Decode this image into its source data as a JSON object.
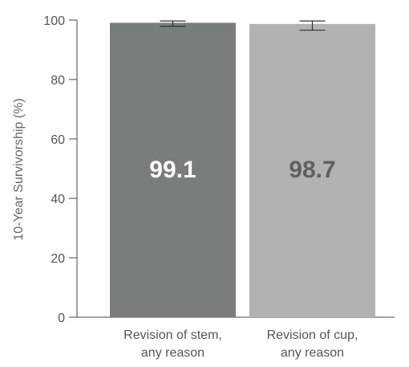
{
  "chart_data": {
    "type": "bar",
    "ylabel": "10-Year Survivorship (%)",
    "ylim": [
      0,
      100
    ],
    "yticks": [
      0,
      20,
      40,
      60,
      80,
      100
    ],
    "grid": false,
    "categories": [
      [
        "Revision of stem,",
        "any reason"
      ],
      [
        "Revision of cup,",
        "any reason"
      ]
    ],
    "values": [
      99.1,
      98.7
    ],
    "value_labels": [
      "99.1",
      "98.7"
    ],
    "error_bars": [
      {
        "low": 97.9,
        "high": 99.7
      },
      {
        "low": 96.6,
        "high": 99.7
      }
    ],
    "bar_colors": [
      "#7a7d7d",
      "#b1b3b3"
    ],
    "value_label_colors": [
      "#ffffff",
      "#5e6161"
    ]
  }
}
